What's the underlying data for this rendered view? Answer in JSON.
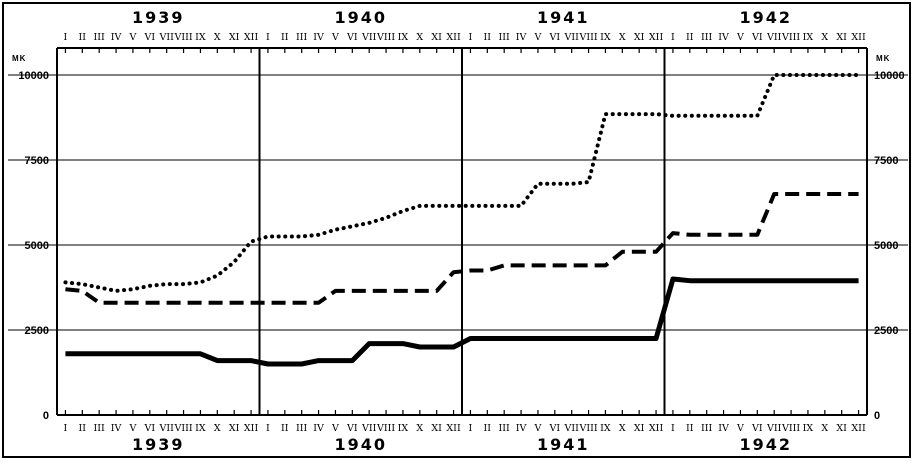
{
  "chart_data": {
    "type": "line",
    "title": "",
    "xlabel": "",
    "ylabel": "MK",
    "ylim": [
      0,
      10000
    ],
    "y_ticks": [
      "0",
      "2500",
      "5000",
      "7500",
      "10000"
    ],
    "years": [
      "1939",
      "1940",
      "1941",
      "1942"
    ],
    "months": [
      "I",
      "II",
      "III",
      "IV",
      "V",
      "VI",
      "VII",
      "VIII",
      "IX",
      "X",
      "XI",
      "XII"
    ],
    "x_note": "monthly, Jan 1939 to Dec 1942",
    "grid": true,
    "series": [
      {
        "style": "dotted",
        "points": [
          [
            "1939-01",
            3900
          ],
          [
            "1939-02",
            3850
          ],
          [
            "1939-03",
            3750
          ],
          [
            "1939-04",
            3650
          ],
          [
            "1939-05",
            3700
          ],
          [
            "1939-06",
            3800
          ],
          [
            "1939-07",
            3850
          ],
          [
            "1939-08",
            3850
          ],
          [
            "1939-09",
            3900
          ],
          [
            "1939-10",
            4100
          ],
          [
            "1939-11",
            4500
          ],
          [
            "1939-12",
            5100
          ],
          [
            "1940-01",
            5250
          ],
          [
            "1940-02",
            5250
          ],
          [
            "1940-03",
            5250
          ],
          [
            "1940-04",
            5300
          ],
          [
            "1940-05",
            5450
          ],
          [
            "1940-06",
            5550
          ],
          [
            "1940-07",
            5650
          ],
          [
            "1940-08",
            5800
          ],
          [
            "1940-09",
            6000
          ],
          [
            "1940-10",
            6150
          ],
          [
            "1940-11",
            6150
          ],
          [
            "1940-12",
            6150
          ],
          [
            "1941-01",
            6150
          ],
          [
            "1941-02",
            6150
          ],
          [
            "1941-03",
            6150
          ],
          [
            "1941-04",
            6150
          ],
          [
            "1941-05",
            6800
          ],
          [
            "1941-06",
            6800
          ],
          [
            "1941-07",
            6800
          ],
          [
            "1941-08",
            6850
          ],
          [
            "1941-09",
            8850
          ],
          [
            "1941-10",
            8850
          ],
          [
            "1941-11",
            8850
          ],
          [
            "1941-12",
            8850
          ],
          [
            "1942-01",
            8800
          ],
          [
            "1942-02",
            8800
          ],
          [
            "1942-03",
            8800
          ],
          [
            "1942-04",
            8800
          ],
          [
            "1942-05",
            8800
          ],
          [
            "1942-06",
            8800
          ],
          [
            "1942-07",
            10000
          ],
          [
            "1942-08",
            10000
          ],
          [
            "1942-09",
            10000
          ],
          [
            "1942-10",
            10000
          ],
          [
            "1942-11",
            10000
          ],
          [
            "1942-12",
            10000
          ]
        ]
      },
      {
        "style": "dashed",
        "points": [
          [
            "1939-01",
            3700
          ],
          [
            "1939-02",
            3650
          ],
          [
            "1939-03",
            3300
          ],
          [
            "1939-04",
            3300
          ],
          [
            "1939-05",
            3300
          ],
          [
            "1939-06",
            3300
          ],
          [
            "1939-07",
            3300
          ],
          [
            "1939-08",
            3300
          ],
          [
            "1939-09",
            3300
          ],
          [
            "1939-10",
            3300
          ],
          [
            "1939-11",
            3300
          ],
          [
            "1939-12",
            3300
          ],
          [
            "1940-01",
            3300
          ],
          [
            "1940-02",
            3300
          ],
          [
            "1940-03",
            3300
          ],
          [
            "1940-04",
            3300
          ],
          [
            "1940-05",
            3650
          ],
          [
            "1940-06",
            3650
          ],
          [
            "1940-07",
            3650
          ],
          [
            "1940-08",
            3650
          ],
          [
            "1940-09",
            3650
          ],
          [
            "1940-10",
            3650
          ],
          [
            "1940-11",
            3650
          ],
          [
            "1940-12",
            4200
          ],
          [
            "1941-01",
            4250
          ],
          [
            "1941-02",
            4250
          ],
          [
            "1941-03",
            4400
          ],
          [
            "1941-04",
            4400
          ],
          [
            "1941-05",
            4400
          ],
          [
            "1941-06",
            4400
          ],
          [
            "1941-07",
            4400
          ],
          [
            "1941-08",
            4400
          ],
          [
            "1941-09",
            4400
          ],
          [
            "1941-10",
            4800
          ],
          [
            "1941-11",
            4800
          ],
          [
            "1941-12",
            4800
          ],
          [
            "1942-01",
            5350
          ],
          [
            "1942-02",
            5300
          ],
          [
            "1942-03",
            5300
          ],
          [
            "1942-04",
            5300
          ],
          [
            "1942-05",
            5300
          ],
          [
            "1942-06",
            5300
          ],
          [
            "1942-07",
            6500
          ],
          [
            "1942-08",
            6500
          ],
          [
            "1942-09",
            6500
          ],
          [
            "1942-10",
            6500
          ],
          [
            "1942-11",
            6500
          ],
          [
            "1942-12",
            6500
          ]
        ]
      },
      {
        "style": "solid",
        "points": [
          [
            "1939-01",
            1800
          ],
          [
            "1939-02",
            1800
          ],
          [
            "1939-03",
            1800
          ],
          [
            "1939-04",
            1800
          ],
          [
            "1939-05",
            1800
          ],
          [
            "1939-06",
            1800
          ],
          [
            "1939-07",
            1800
          ],
          [
            "1939-08",
            1800
          ],
          [
            "1939-09",
            1800
          ],
          [
            "1939-10",
            1600
          ],
          [
            "1939-11",
            1600
          ],
          [
            "1939-12",
            1600
          ],
          [
            "1940-01",
            1500
          ],
          [
            "1940-02",
            1500
          ],
          [
            "1940-03",
            1500
          ],
          [
            "1940-04",
            1600
          ],
          [
            "1940-05",
            1600
          ],
          [
            "1940-06",
            1600
          ],
          [
            "1940-07",
            2100
          ],
          [
            "1940-08",
            2100
          ],
          [
            "1940-09",
            2100
          ],
          [
            "1940-10",
            2000
          ],
          [
            "1940-11",
            2000
          ],
          [
            "1940-12",
            2000
          ],
          [
            "1941-01",
            2250
          ],
          [
            "1941-02",
            2250
          ],
          [
            "1941-03",
            2250
          ],
          [
            "1941-04",
            2250
          ],
          [
            "1941-05",
            2250
          ],
          [
            "1941-06",
            2250
          ],
          [
            "1941-07",
            2250
          ],
          [
            "1941-08",
            2250
          ],
          [
            "1941-09",
            2250
          ],
          [
            "1941-10",
            2250
          ],
          [
            "1941-11",
            2250
          ],
          [
            "1941-12",
            2250
          ],
          [
            "1942-01",
            4000
          ],
          [
            "1942-02",
            3950
          ],
          [
            "1942-03",
            3950
          ],
          [
            "1942-04",
            3950
          ],
          [
            "1942-05",
            3950
          ],
          [
            "1942-06",
            3950
          ],
          [
            "1942-07",
            3950
          ],
          [
            "1942-08",
            3950
          ],
          [
            "1942-09",
            3950
          ],
          [
            "1942-10",
            3950
          ],
          [
            "1942-11",
            3950
          ],
          [
            "1942-12",
            3950
          ]
        ]
      }
    ]
  }
}
